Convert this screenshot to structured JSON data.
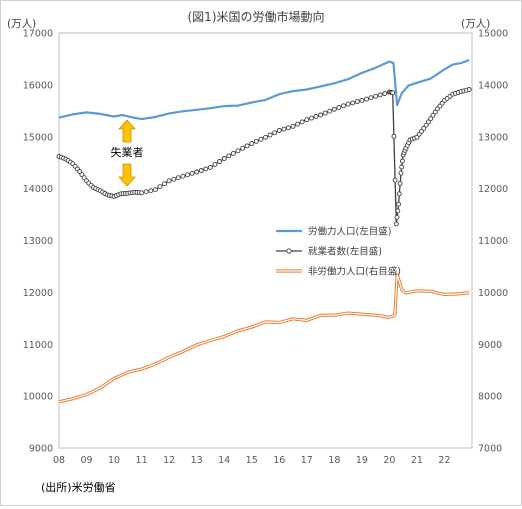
{
  "chart_data": {
    "type": "line",
    "title": "(図1)米国の労働市場動向",
    "source": "(出所)米労働省",
    "y_left_unit": "(万人)",
    "y_right_unit": "(万人)",
    "y_left_range": [
      9000,
      17000
    ],
    "y_right_range": [
      7000,
      15000
    ],
    "y_left_ticks": [
      "17000",
      "16000",
      "15000",
      "14000",
      "13000",
      "12000",
      "11000",
      "10000",
      "9000"
    ],
    "y_right_ticks": [
      "15000",
      "14000",
      "13000",
      "12000",
      "11000",
      "10000",
      "9000",
      "8000",
      "7000"
    ],
    "x_range": [
      2008,
      2023
    ],
    "x_ticks": [
      "08",
      "09",
      "10",
      "11",
      "12",
      "13",
      "14",
      "15",
      "16",
      "17",
      "18",
      "19",
      "20",
      "21",
      "22"
    ],
    "grid": false,
    "legend_position": "center-right",
    "annotation": "失業者",
    "series": [
      {
        "name": "労働力人口(左目盛)",
        "axis": "left",
        "color": "#5b9bd5",
        "x": [
          2008.0,
          2008.5,
          2009.0,
          2009.5,
          2010.0,
          2010.3,
          2010.6,
          2011.0,
          2011.5,
          2012.0,
          2012.5,
          2013.0,
          2013.5,
          2014.0,
          2014.5,
          2015.0,
          2015.5,
          2016.0,
          2016.5,
          2017.0,
          2017.5,
          2018.0,
          2018.5,
          2019.0,
          2019.5,
          2020.0,
          2020.15,
          2020.28,
          2020.45,
          2020.7,
          2021.0,
          2021.5,
          2022.0,
          2022.3,
          2022.6,
          2022.9
        ],
        "y": [
          15370,
          15430,
          15470,
          15440,
          15390,
          15420,
          15380,
          15340,
          15380,
          15450,
          15490,
          15520,
          15550,
          15590,
          15600,
          15660,
          15710,
          15820,
          15880,
          15910,
          15970,
          16030,
          16110,
          16230,
          16330,
          16450,
          16420,
          15610,
          15840,
          15990,
          16040,
          16120,
          16300,
          16390,
          16420,
          16480
        ]
      },
      {
        "name": "就業者数(左目盛)",
        "axis": "left",
        "color": "#404040",
        "x": [
          2008.0,
          2008.25,
          2008.5,
          2008.75,
          2009.0,
          2009.25,
          2009.5,
          2009.75,
          2010.0,
          2010.25,
          2010.5,
          2010.75,
          2011.0,
          2011.5,
          2012.0,
          2012.5,
          2013.0,
          2013.5,
          2014.0,
          2014.5,
          2015.0,
          2015.5,
          2016.0,
          2016.5,
          2017.0,
          2017.5,
          2018.0,
          2018.5,
          2019.0,
          2019.5,
          2020.0,
          2020.12,
          2020.25,
          2020.33,
          2020.42,
          2020.5,
          2020.6,
          2020.75,
          2021.0,
          2021.25,
          2021.5,
          2021.75,
          2022.0,
          2022.3,
          2022.6,
          2022.9
        ],
        "y": [
          14620,
          14570,
          14480,
          14330,
          14150,
          14020,
          13960,
          13880,
          13850,
          13900,
          13910,
          13930,
          13920,
          13980,
          14150,
          14240,
          14320,
          14410,
          14580,
          14730,
          14870,
          14990,
          15120,
          15200,
          15330,
          15420,
          15530,
          15630,
          15700,
          15780,
          15860,
          15850,
          13320,
          13700,
          14300,
          14650,
          14780,
          14940,
          14990,
          15160,
          15350,
          15540,
          15700,
          15820,
          15870,
          15910
        ]
      },
      {
        "name": "非労働力人口(右目盛)",
        "axis": "right",
        "color": "#ed7d31",
        "x": [
          2008.0,
          2008.5,
          2009.0,
          2009.5,
          2010.0,
          2010.5,
          2011.0,
          2011.5,
          2012.0,
          2012.5,
          2013.0,
          2013.5,
          2014.0,
          2014.5,
          2015.0,
          2015.5,
          2016.0,
          2016.5,
          2017.0,
          2017.5,
          2018.0,
          2018.5,
          2019.0,
          2019.5,
          2020.0,
          2020.2,
          2020.28,
          2020.45,
          2020.6,
          2021.0,
          2021.5,
          2022.0,
          2022.5,
          2022.9
        ],
        "y": [
          7890,
          7950,
          8030,
          8160,
          8340,
          8460,
          8520,
          8620,
          8750,
          8860,
          8990,
          9070,
          9150,
          9260,
          9330,
          9430,
          9420,
          9490,
          9460,
          9560,
          9560,
          9600,
          9580,
          9560,
          9520,
          9560,
          10350,
          10050,
          9990,
          10030,
          10020,
          9960,
          9970,
          9990
        ]
      }
    ]
  }
}
